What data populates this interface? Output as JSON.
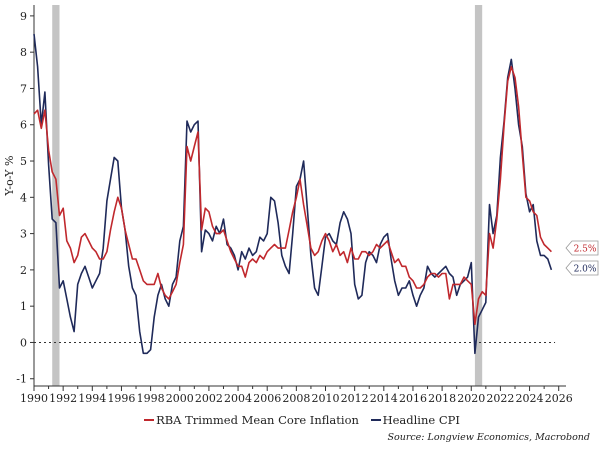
{
  "chart_data": {
    "type": "line",
    "title": "",
    "xlabel": "",
    "ylabel": "Y-o-Y %",
    "xlim": [
      1990,
      2026.5
    ],
    "ylim": [
      -1.2,
      9.3
    ],
    "x_ticks": [
      1990,
      1992,
      1994,
      1996,
      1998,
      2000,
      2002,
      2004,
      2006,
      2008,
      2010,
      2012,
      2014,
      2016,
      2018,
      2020,
      2022,
      2024,
      2026
    ],
    "y_ticks": [
      -1,
      0,
      1,
      2,
      3,
      4,
      5,
      6,
      7,
      8,
      9
    ],
    "grid": false,
    "zero_line": {
      "value": 0,
      "style": "dotted"
    },
    "shaded_periods": [
      [
        1991.25,
        1991.75
      ],
      [
        2020.25,
        2020.75
      ]
    ],
    "series": [
      {
        "name": "RBA Trimmed Mean Core Inflation",
        "color": "#c0282d",
        "end_label": "2.5%",
        "points": [
          [
            1990.0,
            6.3
          ],
          [
            1990.25,
            6.4
          ],
          [
            1990.5,
            5.9
          ],
          [
            1990.75,
            6.4
          ],
          [
            1991.0,
            5.3
          ],
          [
            1991.25,
            4.7
          ],
          [
            1991.5,
            4.5
          ],
          [
            1991.75,
            3.5
          ],
          [
            1992.0,
            3.7
          ],
          [
            1992.25,
            2.8
          ],
          [
            1992.5,
            2.6
          ],
          [
            1992.75,
            2.2
          ],
          [
            1993.0,
            2.4
          ],
          [
            1993.25,
            2.9
          ],
          [
            1993.5,
            3.0
          ],
          [
            1993.75,
            2.8
          ],
          [
            1994.0,
            2.6
          ],
          [
            1994.25,
            2.5
          ],
          [
            1994.5,
            2.3
          ],
          [
            1994.75,
            2.3
          ],
          [
            1995.0,
            2.5
          ],
          [
            1995.25,
            3.1
          ],
          [
            1995.5,
            3.6
          ],
          [
            1995.75,
            4.0
          ],
          [
            1996.0,
            3.7
          ],
          [
            1996.25,
            3.1
          ],
          [
            1996.5,
            2.7
          ],
          [
            1996.75,
            2.3
          ],
          [
            1997.0,
            2.3
          ],
          [
            1997.25,
            2.0
          ],
          [
            1997.5,
            1.7
          ],
          [
            1997.75,
            1.6
          ],
          [
            1998.0,
            1.6
          ],
          [
            1998.25,
            1.6
          ],
          [
            1998.5,
            1.9
          ],
          [
            1998.75,
            1.5
          ],
          [
            1999.0,
            1.3
          ],
          [
            1999.25,
            1.2
          ],
          [
            1999.5,
            1.4
          ],
          [
            1999.75,
            1.6
          ],
          [
            2000.0,
            2.2
          ],
          [
            2000.25,
            2.7
          ],
          [
            2000.5,
            5.4
          ],
          [
            2000.75,
            5.0
          ],
          [
            2001.0,
            5.4
          ],
          [
            2001.25,
            5.8
          ],
          [
            2001.5,
            3.1
          ],
          [
            2001.75,
            3.7
          ],
          [
            2002.0,
            3.6
          ],
          [
            2002.25,
            3.2
          ],
          [
            2002.5,
            3.0
          ],
          [
            2002.75,
            3.0
          ],
          [
            2003.0,
            3.1
          ],
          [
            2003.25,
            2.8
          ],
          [
            2003.5,
            2.5
          ],
          [
            2003.75,
            2.3
          ],
          [
            2004.0,
            2.1
          ],
          [
            2004.25,
            2.1
          ],
          [
            2004.5,
            1.8
          ],
          [
            2004.75,
            2.2
          ],
          [
            2005.0,
            2.3
          ],
          [
            2005.25,
            2.2
          ],
          [
            2005.5,
            2.4
          ],
          [
            2005.75,
            2.3
          ],
          [
            2006.0,
            2.5
          ],
          [
            2006.25,
            2.6
          ],
          [
            2006.5,
            2.7
          ],
          [
            2006.75,
            2.6
          ],
          [
            2007.0,
            2.6
          ],
          [
            2007.25,
            2.6
          ],
          [
            2007.5,
            3.1
          ],
          [
            2007.75,
            3.6
          ],
          [
            2008.0,
            4.0
          ],
          [
            2008.25,
            4.5
          ],
          [
            2008.5,
            3.8
          ],
          [
            2008.75,
            3.2
          ],
          [
            2009.0,
            2.6
          ],
          [
            2009.25,
            2.4
          ],
          [
            2009.5,
            2.5
          ],
          [
            2009.75,
            2.8
          ],
          [
            2010.0,
            3.0
          ],
          [
            2010.25,
            2.8
          ],
          [
            2010.5,
            2.5
          ],
          [
            2010.75,
            2.7
          ],
          [
            2011.0,
            2.4
          ],
          [
            2011.25,
            2.5
          ],
          [
            2011.5,
            2.2
          ],
          [
            2011.75,
            2.6
          ],
          [
            2012.0,
            2.3
          ],
          [
            2012.25,
            2.3
          ],
          [
            2012.5,
            2.5
          ],
          [
            2012.75,
            2.5
          ],
          [
            2013.0,
            2.4
          ],
          [
            2013.25,
            2.5
          ],
          [
            2013.5,
            2.7
          ],
          [
            2013.75,
            2.6
          ],
          [
            2014.0,
            2.7
          ],
          [
            2014.25,
            2.8
          ],
          [
            2014.5,
            2.5
          ],
          [
            2014.75,
            2.2
          ],
          [
            2015.0,
            2.3
          ],
          [
            2015.25,
            2.1
          ],
          [
            2015.5,
            2.1
          ],
          [
            2015.75,
            1.8
          ],
          [
            2016.0,
            1.7
          ],
          [
            2016.25,
            1.5
          ],
          [
            2016.5,
            1.5
          ],
          [
            2016.75,
            1.6
          ],
          [
            2017.0,
            1.8
          ],
          [
            2017.25,
            1.9
          ],
          [
            2017.5,
            1.9
          ],
          [
            2017.75,
            1.8
          ],
          [
            2018.0,
            1.9
          ],
          [
            2018.25,
            1.9
          ],
          [
            2018.5,
            1.2
          ],
          [
            2018.75,
            1.6
          ],
          [
            2019.0,
            1.6
          ],
          [
            2019.25,
            1.6
          ],
          [
            2019.5,
            1.8
          ],
          [
            2019.75,
            1.7
          ],
          [
            2020.0,
            1.6
          ],
          [
            2020.25,
            0.5
          ],
          [
            2020.5,
            1.2
          ],
          [
            2020.75,
            1.4
          ],
          [
            2021.0,
            1.3
          ],
          [
            2021.25,
            3.0
          ],
          [
            2021.5,
            2.6
          ],
          [
            2021.75,
            3.4
          ],
          [
            2022.0,
            4.5
          ],
          [
            2022.25,
            6.0
          ],
          [
            2022.5,
            7.2
          ],
          [
            2022.75,
            7.6
          ],
          [
            2023.0,
            7.3
          ],
          [
            2023.25,
            6.5
          ],
          [
            2023.5,
            5.2
          ],
          [
            2023.75,
            4.0
          ],
          [
            2024.0,
            3.9
          ],
          [
            2024.25,
            3.6
          ],
          [
            2024.5,
            3.5
          ],
          [
            2024.75,
            2.9
          ],
          [
            2025.0,
            2.7
          ],
          [
            2025.25,
            2.6
          ],
          [
            2025.5,
            2.5
          ]
        ]
      },
      {
        "name": "Headline CPI",
        "color": "#1f2a5a",
        "end_label": "2.0%",
        "points": [
          [
            1990.0,
            8.5
          ],
          [
            1990.25,
            7.6
          ],
          [
            1990.5,
            6.0
          ],
          [
            1990.75,
            6.9
          ],
          [
            1991.0,
            4.9
          ],
          [
            1991.25,
            3.4
          ],
          [
            1991.5,
            3.3
          ],
          [
            1991.75,
            1.5
          ],
          [
            1992.0,
            1.7
          ],
          [
            1992.25,
            1.2
          ],
          [
            1992.5,
            0.7
          ],
          [
            1992.75,
            0.3
          ],
          [
            1993.0,
            1.6
          ],
          [
            1993.25,
            1.9
          ],
          [
            1993.5,
            2.1
          ],
          [
            1993.75,
            1.8
          ],
          [
            1994.0,
            1.5
          ],
          [
            1994.25,
            1.7
          ],
          [
            1994.5,
            1.9
          ],
          [
            1994.75,
            2.6
          ],
          [
            1995.0,
            3.9
          ],
          [
            1995.25,
            4.5
          ],
          [
            1995.5,
            5.1
          ],
          [
            1995.75,
            5.0
          ],
          [
            1996.0,
            3.7
          ],
          [
            1996.25,
            3.1
          ],
          [
            1996.5,
            2.1
          ],
          [
            1996.75,
            1.5
          ],
          [
            1997.0,
            1.3
          ],
          [
            1997.25,
            0.3
          ],
          [
            1997.5,
            -0.3
          ],
          [
            1997.75,
            -0.3
          ],
          [
            1998.0,
            -0.2
          ],
          [
            1998.25,
            0.7
          ],
          [
            1998.5,
            1.3
          ],
          [
            1998.75,
            1.6
          ],
          [
            1999.0,
            1.2
          ],
          [
            1999.25,
            1.0
          ],
          [
            1999.5,
            1.6
          ],
          [
            1999.75,
            1.8
          ],
          [
            2000.0,
            2.8
          ],
          [
            2000.25,
            3.2
          ],
          [
            2000.5,
            6.1
          ],
          [
            2000.75,
            5.8
          ],
          [
            2001.0,
            6.0
          ],
          [
            2001.25,
            6.1
          ],
          [
            2001.5,
            2.5
          ],
          [
            2001.75,
            3.1
          ],
          [
            2002.0,
            3.0
          ],
          [
            2002.25,
            2.8
          ],
          [
            2002.5,
            3.2
          ],
          [
            2002.75,
            3.0
          ],
          [
            2003.0,
            3.4
          ],
          [
            2003.25,
            2.7
          ],
          [
            2003.5,
            2.6
          ],
          [
            2003.75,
            2.4
          ],
          [
            2004.0,
            2.0
          ],
          [
            2004.25,
            2.5
          ],
          [
            2004.5,
            2.3
          ],
          [
            2004.75,
            2.6
          ],
          [
            2005.0,
            2.4
          ],
          [
            2005.25,
            2.5
          ],
          [
            2005.5,
            2.9
          ],
          [
            2005.75,
            2.8
          ],
          [
            2006.0,
            3.0
          ],
          [
            2006.25,
            4.0
          ],
          [
            2006.5,
            3.9
          ],
          [
            2006.75,
            3.3
          ],
          [
            2007.0,
            2.4
          ],
          [
            2007.25,
            2.1
          ],
          [
            2007.5,
            1.9
          ],
          [
            2007.75,
            3.0
          ],
          [
            2008.0,
            4.3
          ],
          [
            2008.25,
            4.5
          ],
          [
            2008.5,
            5.0
          ],
          [
            2008.75,
            3.7
          ],
          [
            2009.0,
            2.4
          ],
          [
            2009.25,
            1.5
          ],
          [
            2009.5,
            1.3
          ],
          [
            2009.75,
            2.1
          ],
          [
            2010.0,
            2.9
          ],
          [
            2010.25,
            3.0
          ],
          [
            2010.5,
            2.8
          ],
          [
            2010.75,
            2.7
          ],
          [
            2011.0,
            3.3
          ],
          [
            2011.25,
            3.6
          ],
          [
            2011.5,
            3.4
          ],
          [
            2011.75,
            3.0
          ],
          [
            2012.0,
            1.6
          ],
          [
            2012.25,
            1.2
          ],
          [
            2012.5,
            1.3
          ],
          [
            2012.75,
            2.2
          ],
          [
            2013.0,
            2.5
          ],
          [
            2013.25,
            2.4
          ],
          [
            2013.5,
            2.2
          ],
          [
            2013.75,
            2.7
          ],
          [
            2014.0,
            2.9
          ],
          [
            2014.25,
            3.0
          ],
          [
            2014.5,
            2.3
          ],
          [
            2014.75,
            1.7
          ],
          [
            2015.0,
            1.3
          ],
          [
            2015.25,
            1.5
          ],
          [
            2015.5,
            1.5
          ],
          [
            2015.75,
            1.7
          ],
          [
            2016.0,
            1.3
          ],
          [
            2016.25,
            1.0
          ],
          [
            2016.5,
            1.3
          ],
          [
            2016.75,
            1.5
          ],
          [
            2017.0,
            2.1
          ],
          [
            2017.25,
            1.9
          ],
          [
            2017.5,
            1.8
          ],
          [
            2017.75,
            1.9
          ],
          [
            2018.0,
            2.0
          ],
          [
            2018.25,
            2.1
          ],
          [
            2018.5,
            1.9
          ],
          [
            2018.75,
            1.8
          ],
          [
            2019.0,
            1.3
          ],
          [
            2019.25,
            1.6
          ],
          [
            2019.5,
            1.7
          ],
          [
            2019.75,
            1.8
          ],
          [
            2020.0,
            2.2
          ],
          [
            2020.25,
            -0.3
          ],
          [
            2020.5,
            0.7
          ],
          [
            2020.75,
            0.9
          ],
          [
            2021.0,
            1.1
          ],
          [
            2021.25,
            3.8
          ],
          [
            2021.5,
            3.0
          ],
          [
            2021.75,
            3.5
          ],
          [
            2022.0,
            5.1
          ],
          [
            2022.25,
            6.1
          ],
          [
            2022.5,
            7.3
          ],
          [
            2022.75,
            7.8
          ],
          [
            2023.0,
            7.0
          ],
          [
            2023.25,
            6.0
          ],
          [
            2023.5,
            5.4
          ],
          [
            2023.75,
            4.1
          ],
          [
            2024.0,
            3.6
          ],
          [
            2024.25,
            3.8
          ],
          [
            2024.5,
            2.8
          ],
          [
            2024.75,
            2.4
          ],
          [
            2025.0,
            2.4
          ],
          [
            2025.25,
            2.3
          ],
          [
            2025.5,
            2.0
          ]
        ]
      }
    ]
  },
  "source": "Source: Longview Economics, Macrobond"
}
